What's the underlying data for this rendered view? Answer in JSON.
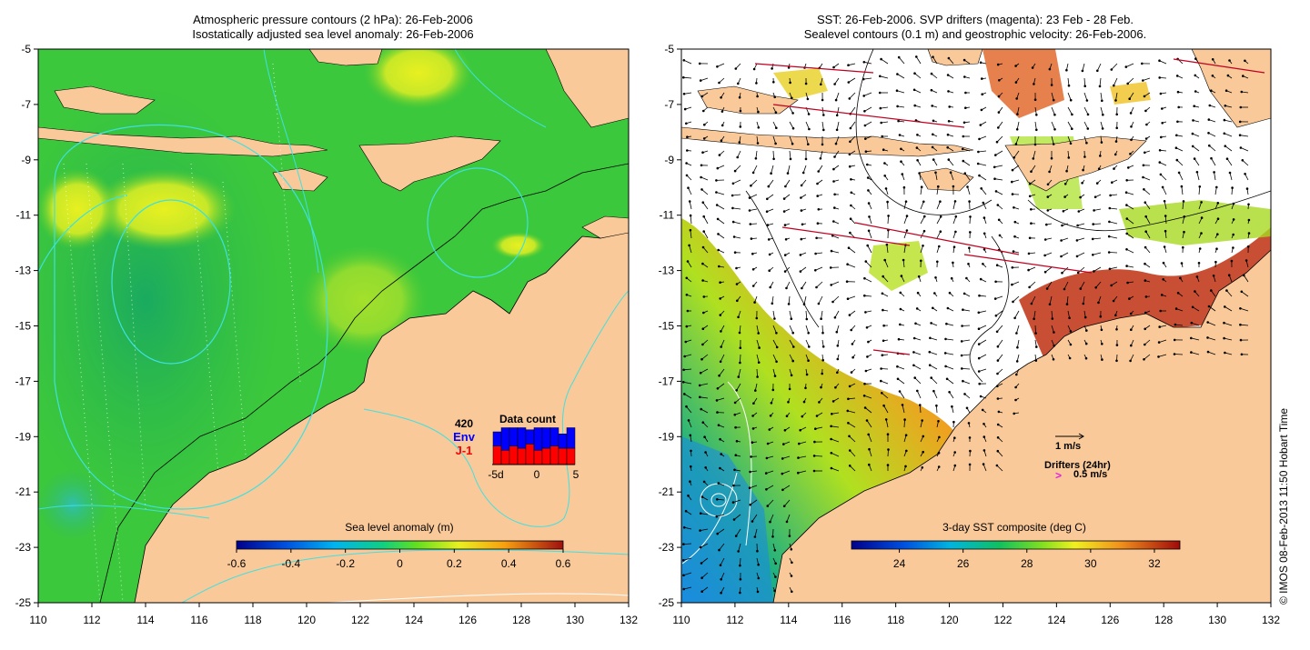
{
  "left_panel": {
    "title_line1": "Atmospheric pressure contours (2 hPa): 26-Feb-2006",
    "title_line2": "Isostatically adjusted sea level anomaly: 26-Feb-2006",
    "x_ticks": [
      "110",
      "112",
      "114",
      "116",
      "118",
      "120",
      "122",
      "124",
      "126",
      "128",
      "130",
      "132"
    ],
    "y_ticks": [
      "-5",
      "-7",
      "-9",
      "-11",
      "-13",
      "-15",
      "-17",
      "-19",
      "-21",
      "-23",
      "-25"
    ],
    "colorbar": {
      "title": "Sea level anomaly (m)",
      "ticks": [
        "-0.6",
        "-0.4",
        "-0.2",
        "0",
        "0.2",
        "0.4",
        "0.6"
      ],
      "range": [
        -0.6,
        0.6
      ]
    },
    "data_count": {
      "title": "Data count",
      "count": "420",
      "series": [
        {
          "name": "Env",
          "color": "#0000ff"
        },
        {
          "name": "J-1",
          "color": "#ff0000"
        }
      ],
      "x_ticks": [
        "-5d",
        "0",
        "5"
      ]
    }
  },
  "right_panel": {
    "title_line1": "SST: 26-Feb-2006. SVP drifters (magenta): 23 Feb - 28 Feb.",
    "title_line2": "Sealevel contours (0.1 m) and geostrophic velocity: 26-Feb-2006.",
    "x_ticks": [
      "110",
      "112",
      "114",
      "116",
      "118",
      "120",
      "122",
      "124",
      "126",
      "128",
      "130",
      "132"
    ],
    "y_ticks": [
      "-5",
      "-7",
      "-9",
      "-11",
      "-13",
      "-15",
      "-17",
      "-19",
      "-21",
      "-23",
      "-25"
    ],
    "colorbar": {
      "title": "3-day SST composite (deg C)",
      "ticks": [
        "24",
        "26",
        "28",
        "30",
        "32"
      ],
      "range": [
        22.5,
        32.8
      ]
    },
    "velocity_legend": {
      "label": "1 m/s"
    },
    "drifter_legend": {
      "label_line1": "Drifters (24hr)",
      "marker": ">",
      "label_line2": "0.5 m/s"
    }
  },
  "credit": "© IMOS 08-Feb-2013 11:50 Hobart Time",
  "colors": {
    "land": "#f9c99a",
    "sea_base": "#3cc83c",
    "sst_cloud": "#ffffff",
    "contour_cyan": "#40e0e0"
  }
}
